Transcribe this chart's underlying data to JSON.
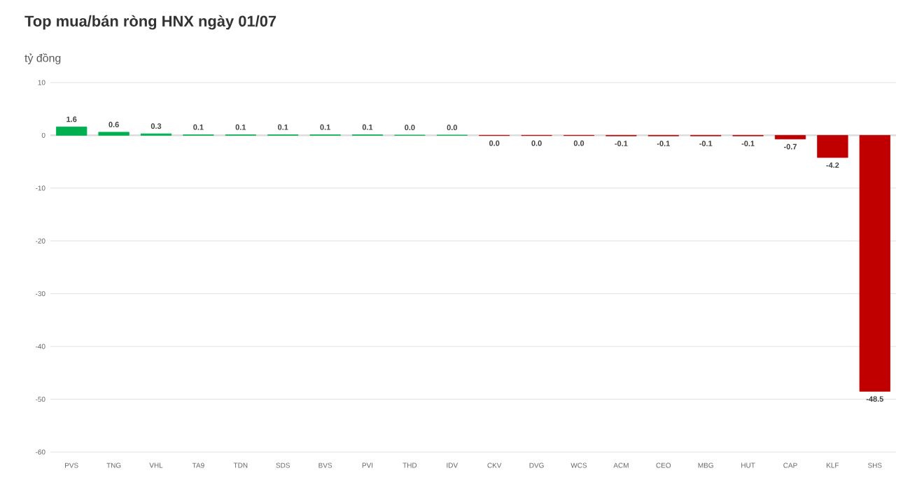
{
  "chart_data": {
    "type": "bar",
    "title": "Top mua/bán ròng HNX ngày 01/07",
    "ylabel": "tỷ đồng",
    "categories": [
      "PVS",
      "TNG",
      "VHL",
      "TA9",
      "TDN",
      "SDS",
      "BVS",
      "PVI",
      "THD",
      "IDV",
      "CKV",
      "DVG",
      "WCS",
      "ACM",
      "CEO",
      "MBG",
      "HUT",
      "CAP",
      "KLF",
      "SHS"
    ],
    "values": [
      1.6,
      0.6,
      0.3,
      0.1,
      0.1,
      0.1,
      0.1,
      0.1,
      0.04,
      0.04,
      -0.04,
      -0.04,
      -0.04,
      -0.1,
      -0.1,
      -0.1,
      -0.1,
      -0.7,
      -4.2,
      -48.5
    ],
    "value_labels": [
      "1.6",
      "0.6",
      "0.3",
      "0.1",
      "0.1",
      "0.1",
      "0.1",
      "0.1",
      "0.0",
      "0.0",
      "0.0",
      "0.0",
      "0.0",
      "-0.1",
      "-0.1",
      "-0.1",
      "-0.1",
      "-0.7",
      "-4.2",
      "-48.5"
    ],
    "colors": [
      "#00b050",
      "#00b050",
      "#00b050",
      "#00b050",
      "#00b050",
      "#00b050",
      "#00b050",
      "#00b050",
      "#00b050",
      "#00b050",
      "#c00000",
      "#c00000",
      "#c00000",
      "#c00000",
      "#c00000",
      "#c00000",
      "#c00000",
      "#c00000",
      "#c00000",
      "#c00000"
    ],
    "ylim": [
      -60,
      10
    ],
    "yticks": [
      10,
      0,
      -10,
      -20,
      -30,
      -40,
      -50,
      -60
    ],
    "grid": "y"
  }
}
